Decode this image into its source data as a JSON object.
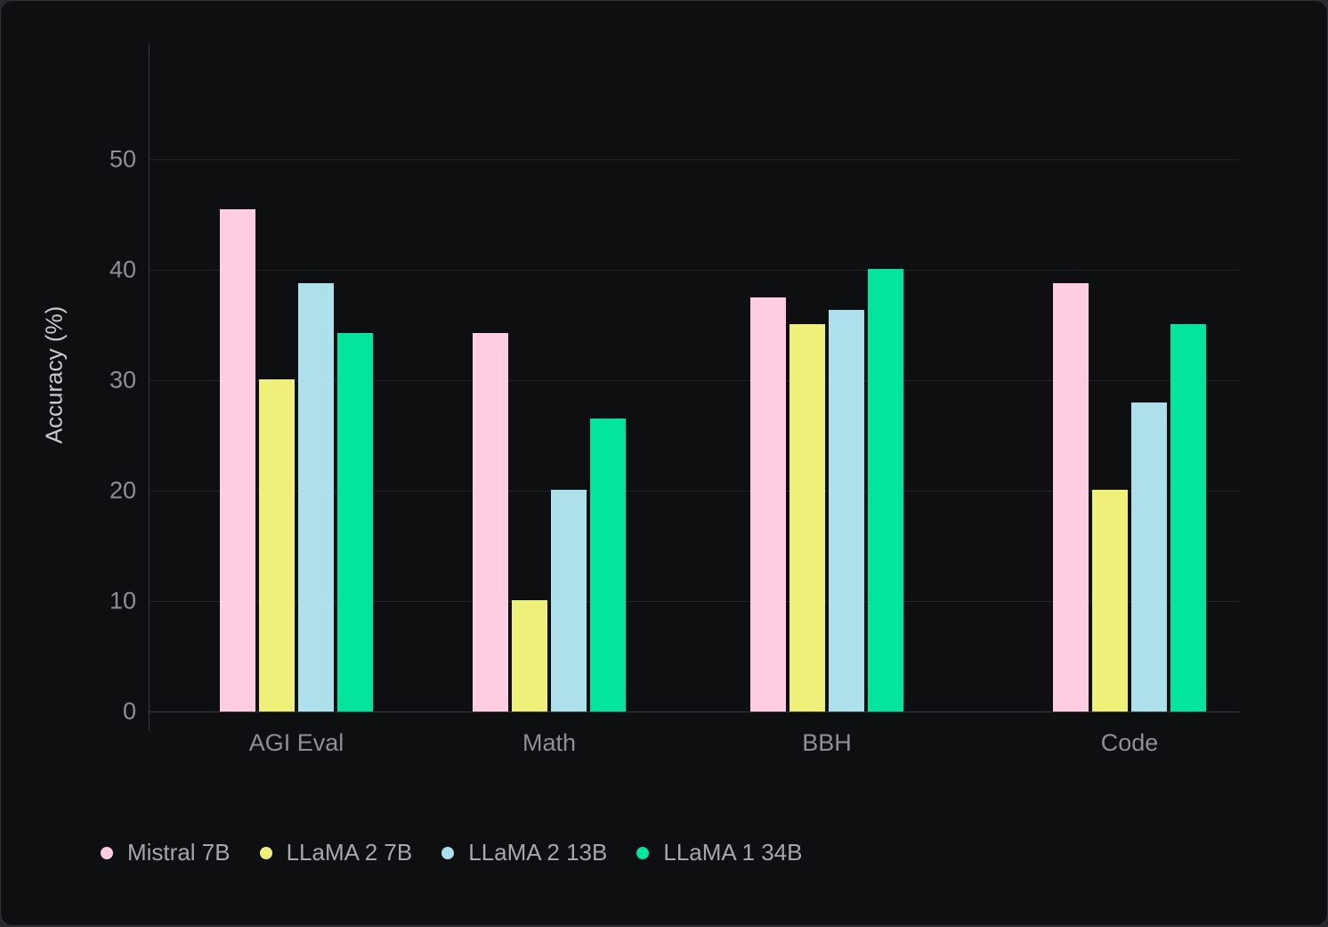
{
  "chart_data": {
    "type": "bar",
    "title": "",
    "categories": [
      "AGI Eval",
      "Math",
      "BBH",
      "Code"
    ],
    "series": [
      {
        "name": "Mistral 7B",
        "color": "#FFCDE2",
        "values": [
          45.5,
          34.3,
          37.5,
          38.8
        ]
      },
      {
        "name": "LLaMA 2 7B",
        "color": "#EEF07A",
        "values": [
          30.1,
          10.1,
          35.1,
          20.1
        ]
      },
      {
        "name": "LLaMA 2 13B",
        "color": "#AEE0EB",
        "values": [
          38.8,
          20.1,
          36.4,
          28.0
        ]
      },
      {
        "name": "LLaMA 1 34B",
        "color": "#03E49C",
        "values": [
          34.3,
          26.5,
          40.1,
          35.1
        ]
      }
    ],
    "xlabel": "",
    "ylabel": "Accuracy (%)",
    "ylim": [
      0,
      60
    ],
    "yticks": [
      0,
      10,
      20,
      30,
      40,
      50
    ],
    "grid": "horizontal",
    "legend_position": "bottom-left"
  },
  "theme": {
    "panel_background": "#0e0f10",
    "page_background": "#26282b",
    "gridline_color": "#232528",
    "axis_color": "#3a3d42",
    "tick_label_color": "#8d9197",
    "axis_title_color": "#c9cbcf",
    "legend_text_color": "#a4a8ae"
  }
}
